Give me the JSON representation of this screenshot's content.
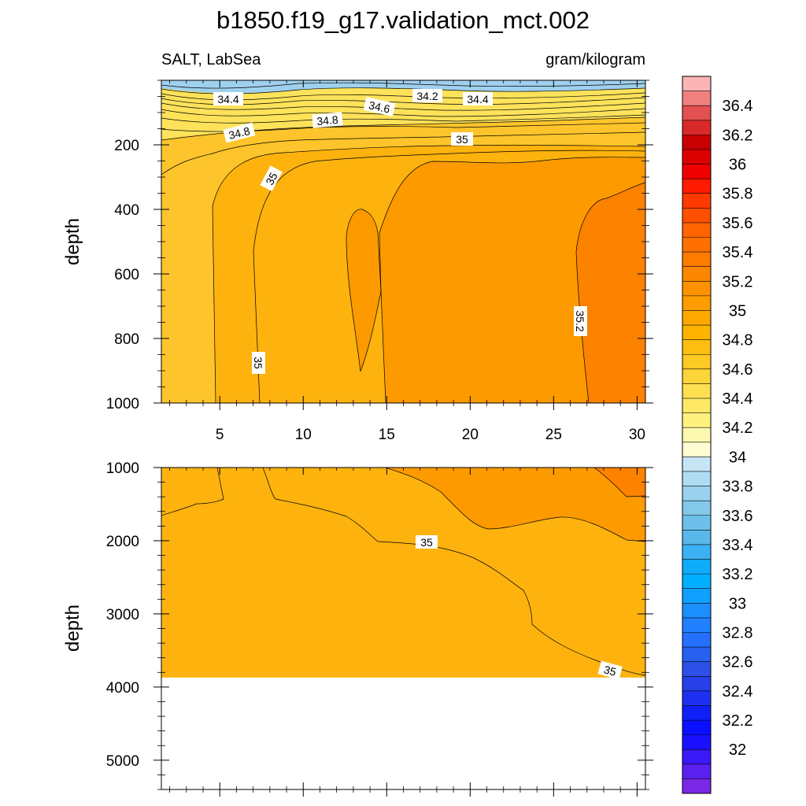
{
  "title": "b1850.f19_g17.validation_mct.002",
  "chart_data": [
    {
      "type": "heatmap",
      "subtitle_left": "SALT, LabSea",
      "subtitle_right": "gram/kilogram",
      "xlabel": "",
      "ylabel": "depth",
      "xlim": [
        1.5,
        30.5
      ],
      "ylim": [
        0,
        1000
      ],
      "y_inverted": true,
      "x_ticks": [
        "5",
        "10",
        "15",
        "20",
        "25",
        "30"
      ],
      "x_tick_values": [
        5,
        10,
        15,
        20,
        25,
        30
      ],
      "y_ticks": [
        "200",
        "400",
        "600",
        "800",
        "1000"
      ],
      "y_tick_values": [
        200,
        400,
        600,
        800,
        1000
      ],
      "contour_labels": [
        "34.4",
        "34.2",
        "34.4",
        "34.6",
        "34.8",
        "34.8",
        "35",
        "35",
        "35",
        "35.2"
      ],
      "regions": [
        {
          "range": "< 34.2",
          "color": "#9fd1ee"
        },
        {
          "range": "34.2-34.8",
          "color": "#fde25a"
        },
        {
          "range": "34.8-35.0",
          "color": "#fdc52b"
        },
        {
          "range": "35.0-35.1",
          "color": "#fdb20e"
        },
        {
          "range": "35.1-35.2",
          "color": "#fd9a00"
        },
        {
          "range": "35.2-35.3",
          "color": "#fc8200"
        }
      ]
    },
    {
      "type": "heatmap",
      "xlabel": "",
      "ylabel": "depth",
      "xlim": [
        1.5,
        30.5
      ],
      "ylim": [
        1000,
        5400
      ],
      "y_inverted": true,
      "y_ticks": [
        "1000",
        "2000",
        "3000",
        "4000",
        "5000"
      ],
      "y_tick_values": [
        1000,
        2000,
        3000,
        4000,
        5000
      ],
      "bottom_depth": 3870,
      "contour_labels": [
        "35",
        "35"
      ],
      "regions": [
        {
          "range": "35.0-35.1",
          "color": "#fdb20e"
        },
        {
          "range": "35.1-35.2",
          "color": "#fd9a00"
        },
        {
          "range": "35.2-35.3",
          "color": "#fc8200"
        }
      ]
    }
  ],
  "colorbar": {
    "labels": [
      "36.4",
      "36.2",
      "36",
      "35.8",
      "35.6",
      "35.4",
      "35.2",
      "35",
      "34.8",
      "34.6",
      "34.4",
      "34.2",
      "34",
      "33.8",
      "33.6",
      "33.4",
      "33.2",
      "33",
      "32.8",
      "32.6",
      "32.4",
      "32.2",
      "32"
    ],
    "colors": [
      "#fcb4b4",
      "#f08080",
      "#e45050",
      "#d82a2a",
      "#c80000",
      "#dc0000",
      "#f00000",
      "#ff1a00",
      "#ff3a00",
      "#ff5000",
      "#ff6400",
      "#ff7000",
      "#fd7c00",
      "#fd8700",
      "#fd9200",
      "#fd9d00",
      "#fda800",
      "#fdb300",
      "#fdbe12",
      "#fdc925",
      "#fdd43a",
      "#fedf50",
      "#fee967",
      "#fef180",
      "#fef9b0",
      "#fefdd2",
      "#c6e6f6",
      "#b0dcf2",
      "#9ad2ee",
      "#84c8ea",
      "#6ec0ea",
      "#58b8ea",
      "#3cb0f2",
      "#10acfc",
      "#00b0ff",
      "#10a0ff",
      "#1c90ff",
      "#2080ff",
      "#2470fc",
      "#2860f0",
      "#2c50e8",
      "#2840e8",
      "#2030f0",
      "#1020f8",
      "#0a10ff",
      "#1a10ff",
      "#3a18f8",
      "#5a20f0",
      "#7a28e8"
    ]
  }
}
